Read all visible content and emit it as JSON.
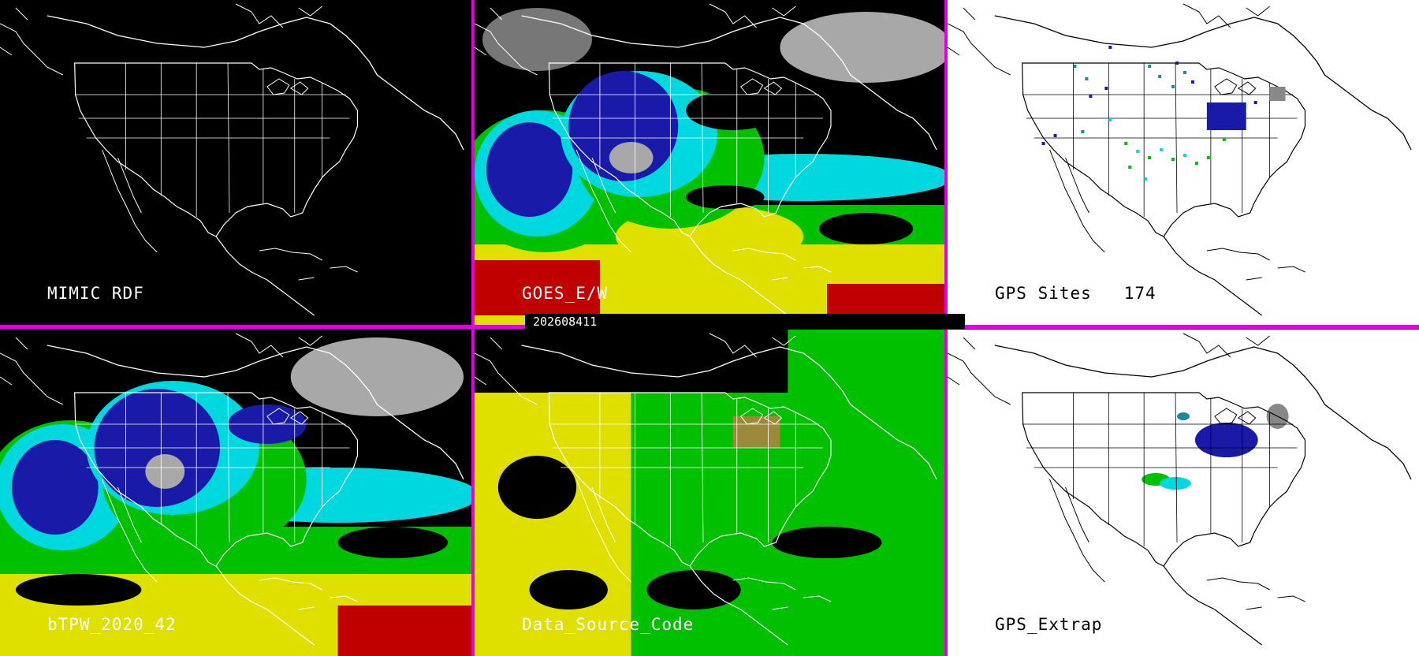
{
  "timestamp": "202608411",
  "panels": {
    "mimic_rdf": {
      "label": "MIMIC RDF"
    },
    "goes": {
      "label": "GOES_E/W"
    },
    "gps_sites": {
      "label": "GPS Sites",
      "count": "174"
    },
    "btpw": {
      "label": "bTPW_2020_42"
    },
    "data_source": {
      "label": "Data_Source_Code"
    },
    "gps_extrap": {
      "label": "GPS_Extrap"
    }
  },
  "colors": {
    "divider": "#e000e0",
    "tpw_dry": "#000000",
    "tpw_low": "#1a1aa8",
    "tpw_mid_low": "#00d8e0",
    "tpw_mid": "#00c000",
    "tpw_mid_high": "#e0e000",
    "tpw_high": "#c00000",
    "cloud_gray": "#a8a8a8",
    "source_yellow": "#e0e000",
    "source_green": "#00c000",
    "source_brown": "#9a8a3a"
  }
}
